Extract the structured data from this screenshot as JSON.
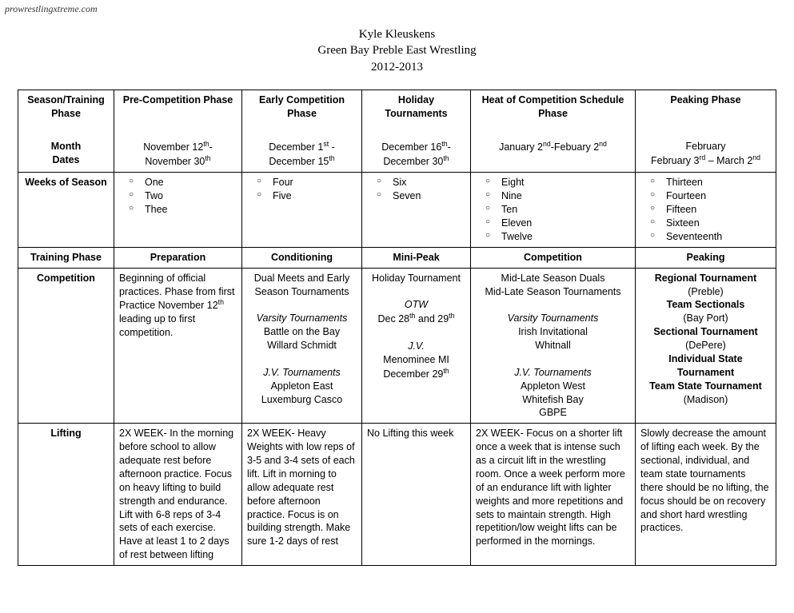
{
  "watermark": "prowrestlingxtreme.com",
  "header": {
    "line1": "Kyle Kleuskens",
    "line2": "Green Bay Preble East Wrestling",
    "line3": "2012-2013"
  },
  "row_labels": {
    "season_training": "Season/Training Phase",
    "month": "Month",
    "dates": "Dates",
    "weeks": "Weeks of Season",
    "training_phase": "Training Phase",
    "competition": "Competition",
    "lifting": "Lifting"
  },
  "phases": [
    {
      "title": "Pre-Competition Phase",
      "dates_html": "November 12<sup>th</sup>-<br>November 30<sup>th</sup>",
      "weeks": [
        "One",
        "Two",
        "Thee"
      ],
      "train_label": "Preparation",
      "competition_html": "Beginning of official practices. Phase from first Practice November 12<sup>th</sup> leading up to first competition.",
      "comp_align": "left",
      "lifting_html": "2X WEEK- In the morning before school to allow adequate rest before afternoon practice.  Focus on heavy lifting to build strength and endurance.  Lift with 6-8 reps of 3-4 sets of each exercise.  Have at least 1 to 2 days of rest between lifting"
    },
    {
      "title": "Early Competition Phase",
      "dates_html": "December 1<sup>st</sup> -<br>December 15<sup>th</sup>",
      "weeks": [
        "Four",
        "Five"
      ],
      "train_label": "Conditioning",
      "competition_html": "Dual Meets and Early Season Tournaments<br><br><em>Varsity Tournaments</em><br>Battle on the Bay<br>Willard Schmidt<br><br><em>J.V. Tournaments</em><br>Appleton East<br>Luxemburg Casco",
      "comp_align": "center",
      "lifting_html": "2X WEEK- Heavy Weights with low reps of 3-5 and 3-4 sets of each lift.  Lift in morning to allow adequate rest before afternoon practice.  Focus is on building strength.  Make sure 1-2 days of rest"
    },
    {
      "title": "Holiday Tournaments",
      "dates_html": "December 16<sup>th</sup>-<br>December 30<sup>th</sup>",
      "weeks": [
        "Six",
        "Seven"
      ],
      "train_label": "Mini-Peak",
      "competition_html": "Holiday Tournament<br><br><em>OTW</em><br>Dec 28<sup>th</sup> and 29<sup>th</sup><br><br><em>J.V.</em><br>Menominee MI<br>December 29<sup>th</sup>",
      "comp_align": "center",
      "lifting_html": "No Lifting this week"
    },
    {
      "title": "Heat of Competition Schedule Phase",
      "dates_html": "January 2<sup>nd</sup>-Febuary 2<sup>nd</sup>",
      "weeks": [
        "Eight",
        "Nine",
        "Ten",
        "Eleven",
        "Twelve"
      ],
      "train_label": "Competition",
      "competition_html": "Mid-Late Season Duals<br>Mid-Late Season Tournaments<br><br><em>Varsity Tournaments</em><br>Irish Invitational<br>Whitnall<br><br><em>J.V. Tournaments</em><br>Appleton West<br>Whitefish Bay<br>GBPE",
      "comp_align": "center",
      "lifting_html": "2X WEEK- Focus on a shorter lift once a week that is intense such as a circuit lift in the wrestling room.  Once a week perform more of an endurance lift with lighter weights and more repetitions and sets to maintain strength.  High repetition/low weight lifts can be performed in the mornings."
    },
    {
      "title": "Peaking Phase",
      "dates_html": "February<br>February 3<sup>rd</sup> – March 2<sup>nd</sup>",
      "weeks": [
        "Thirteen",
        "Fourteen",
        "Fifteen",
        "Sixteen",
        "Seventeenth"
      ],
      "train_label": "Peaking",
      "competition_html": "<b>Regional Tournament</b><br>(Preble)<br><b>Team Sectionals</b><br>(Bay Port)<br><b>Sectional Tournament</b><br>(DePere)<br><b>Individual State Tournament</b><br><b>Team State Tournament</b><br>(Madison)",
      "comp_align": "center",
      "lifting_html": "Slowly decrease the amount of lifting each week.  By the sectional, individual, and team state tournaments there should be no lifting, the focus should be on recovery and short hard wrestling practices."
    }
  ]
}
